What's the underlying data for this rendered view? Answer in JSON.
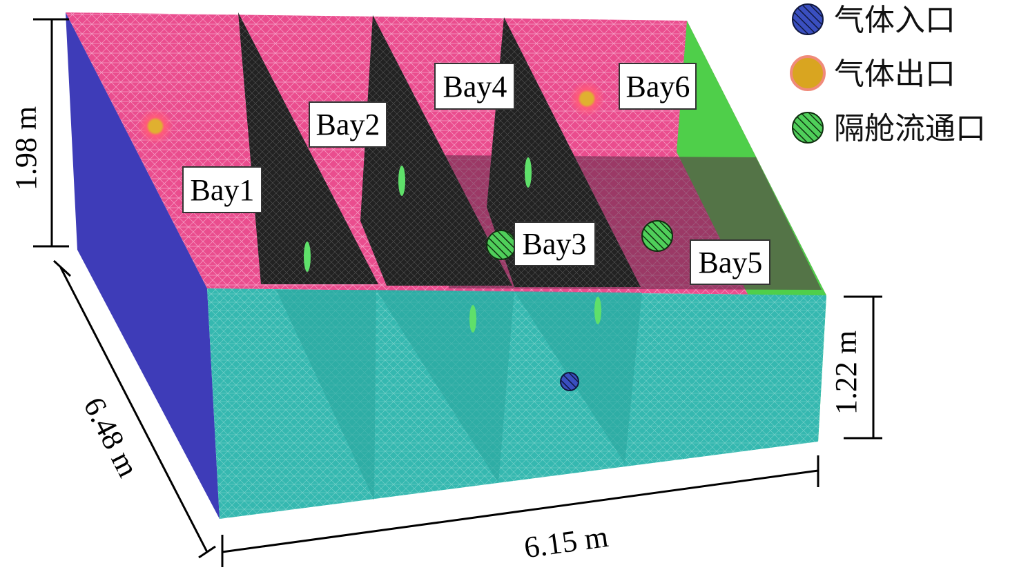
{
  "dimensions": {
    "height_total": "1.98 m",
    "height_lower": "1.22 m",
    "depth": "6.48 m",
    "width": "6.15 m"
  },
  "bays": [
    "Bay1",
    "Bay2",
    "Bay3",
    "Bay4",
    "Bay5",
    "Bay6"
  ],
  "legend": [
    "气体入口",
    "气体出口",
    "隔舱流通口"
  ]
}
